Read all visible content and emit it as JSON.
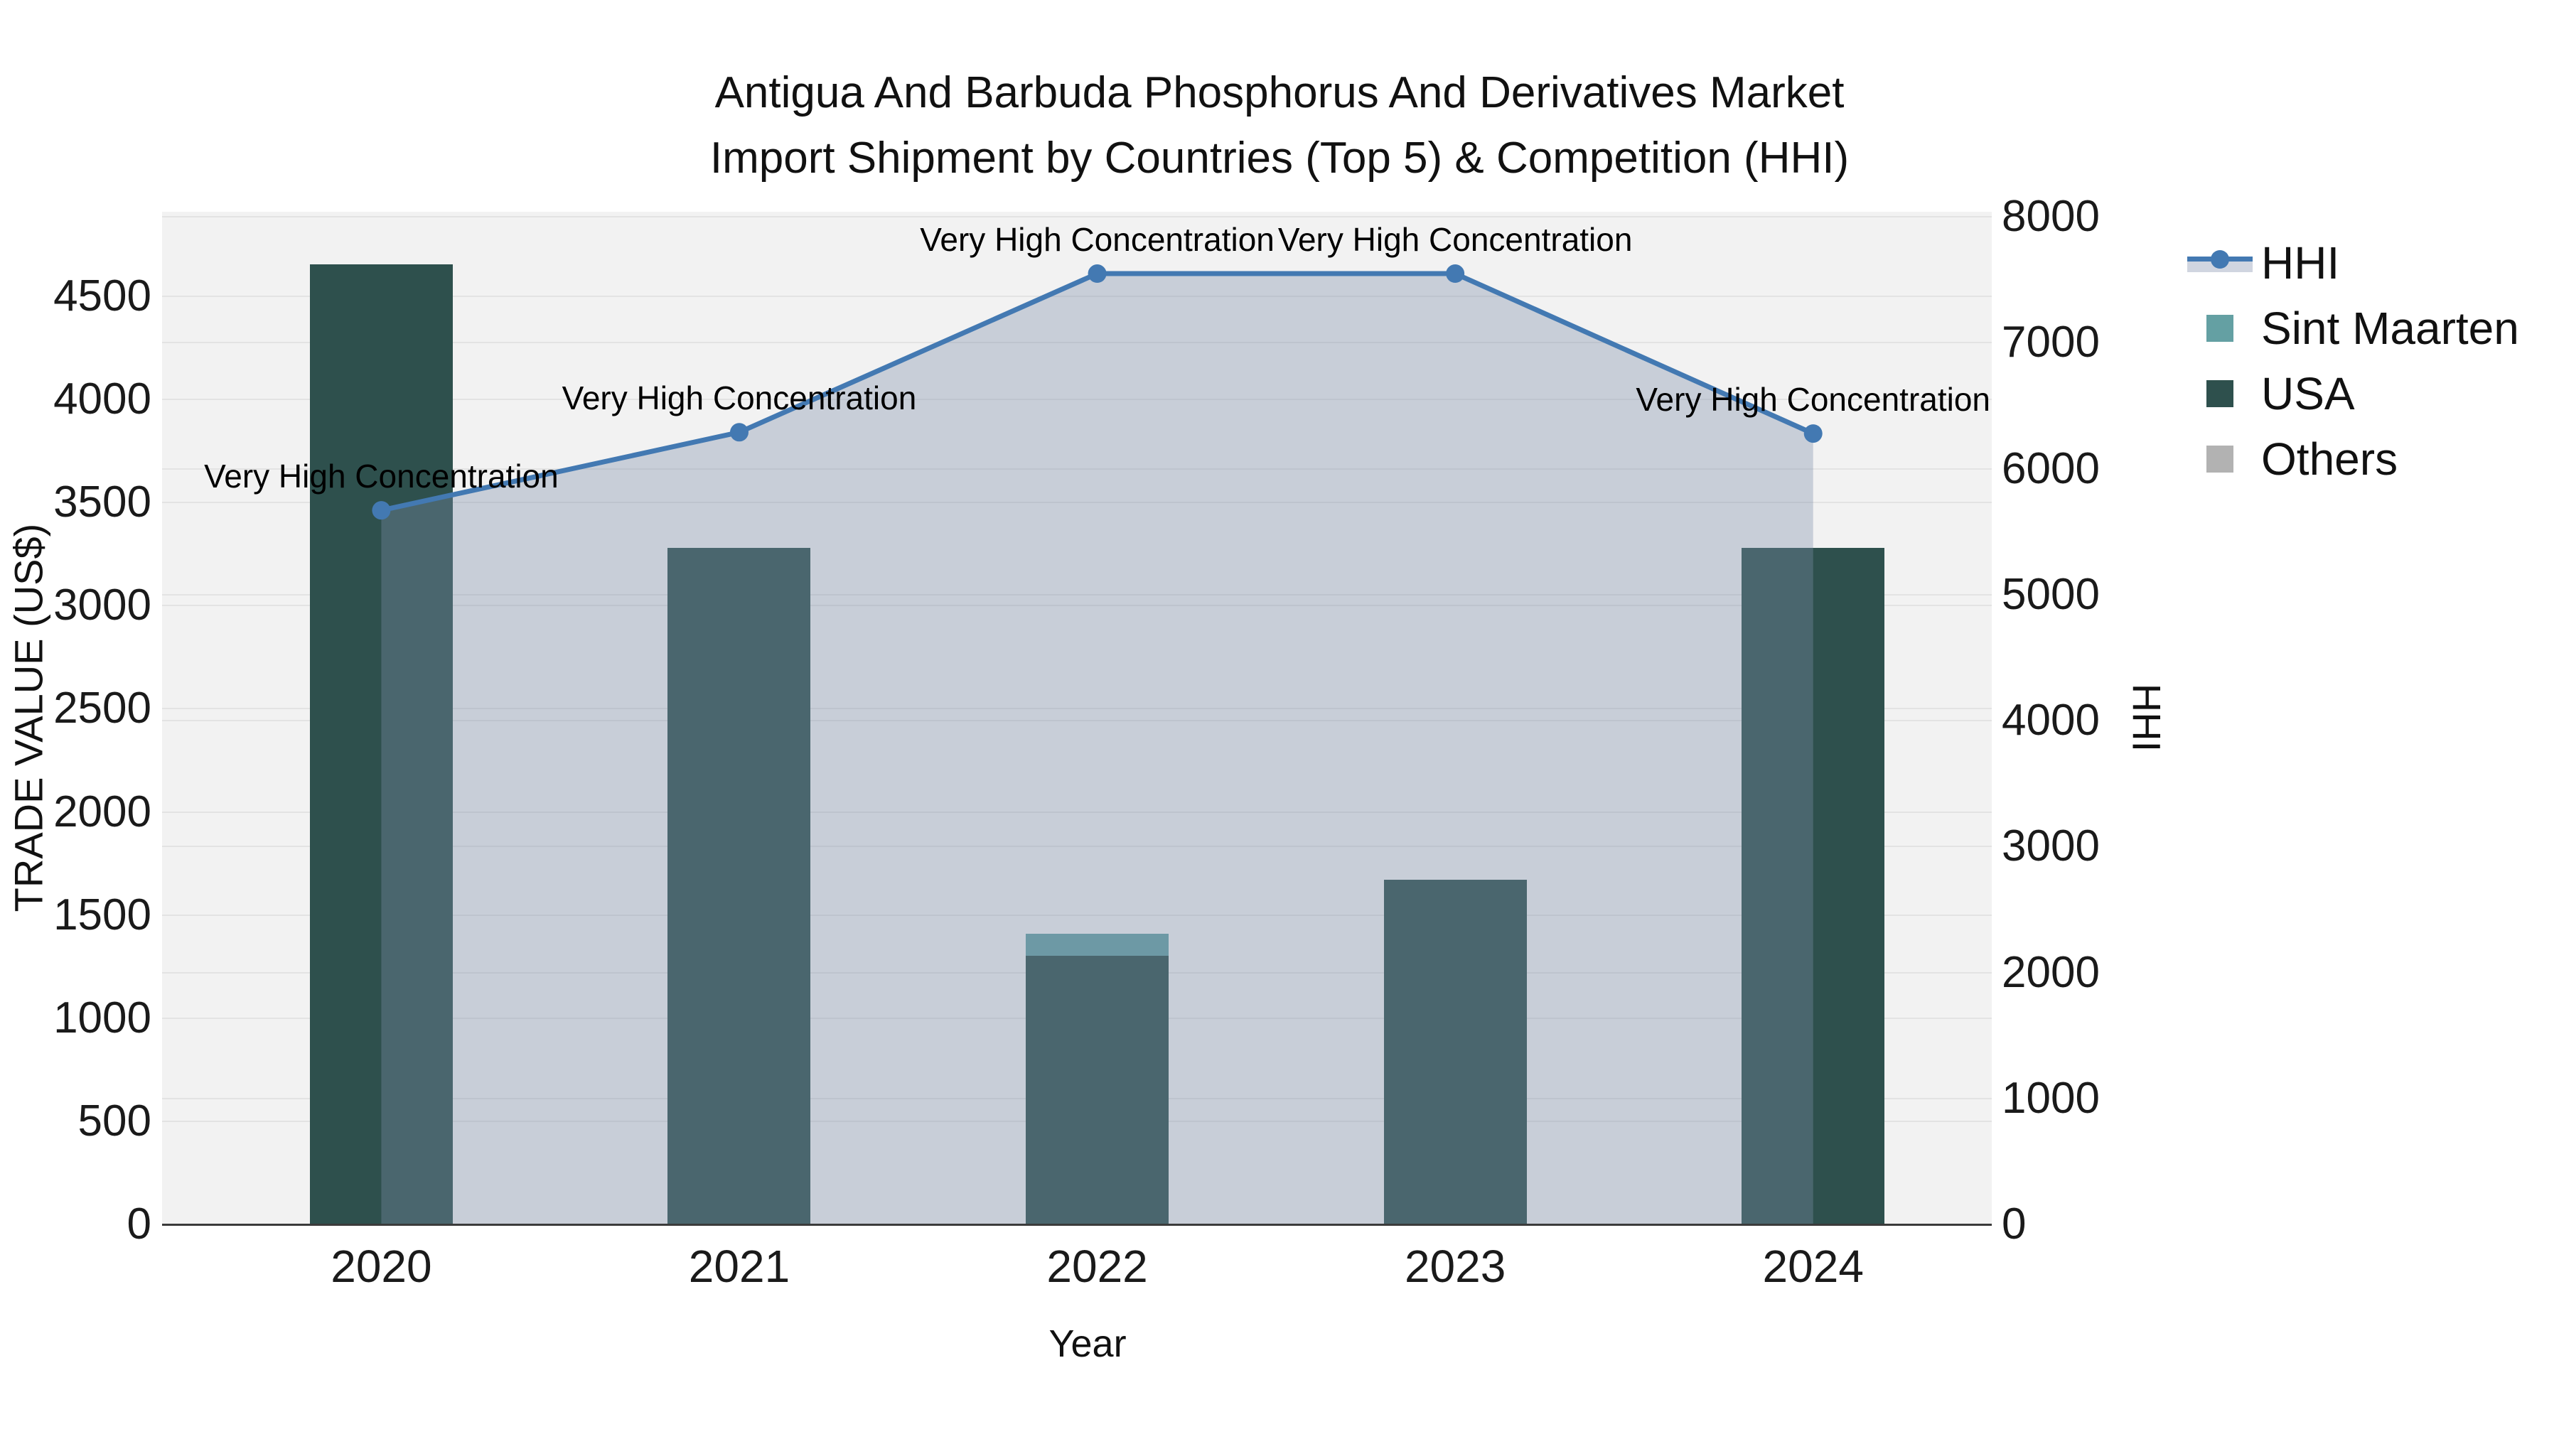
{
  "title": {
    "line1": "Antigua And Barbuda Phosphorus And Derivatives Market",
    "line2": "Import Shipment by Countries (Top 5) & Competition (HHI)"
  },
  "axes": {
    "x_label": "Year",
    "y_left_label": "TRADE VALUE (US$)",
    "y_right_label": "HHI"
  },
  "legend": {
    "items": [
      {
        "label": "HHI",
        "type": "line",
        "color": "#4379b2",
        "band_color": "#d0d5e0"
      },
      {
        "label": "Sint Maarten",
        "type": "swatch",
        "color": "#64a0a3"
      },
      {
        "label": "USA",
        "type": "swatch",
        "color": "#2e504d"
      },
      {
        "label": "Others",
        "type": "swatch",
        "color": "#b2b2b2"
      }
    ]
  },
  "chart_data": {
    "type": "combo-bar-line",
    "title": "Antigua And Barbuda Phosphorus And Derivatives Market Import Shipment by Countries (Top 5) & Competition (HHI)",
    "xlabel": "Year",
    "ylabel_left": "TRADE VALUE (US$)",
    "ylabel_right": "HHI",
    "categories": [
      "2020",
      "2021",
      "2022",
      "2023",
      "2024"
    ],
    "bar_series": [
      {
        "name": "USA",
        "color": "#2e504d",
        "values": [
          4655,
          3280,
          1302,
          1670,
          3280
        ]
      },
      {
        "name": "Sint Maarten",
        "color": "#64a0a3",
        "values": [
          0,
          0,
          108,
          0,
          0
        ]
      },
      {
        "name": "Others",
        "color": "#b2b2b2",
        "values": [
          0,
          0,
          0,
          0,
          0
        ]
      }
    ],
    "line_series": {
      "name": "HHI",
      "axis": "right",
      "color": "#4379b2",
      "fill_color": "rgba(125,140,170,0.36)",
      "values": [
        5670,
        6290,
        7550,
        7550,
        6280
      ],
      "point_annotations": [
        "Very High Concentration",
        "Very High Concentration",
        "Very High Concentration",
        "Very High Concentration",
        "Very High Concentration"
      ]
    },
    "y_left": {
      "ticks": [
        0,
        500,
        1000,
        1500,
        2000,
        2500,
        3000,
        3500,
        4000,
        4500
      ],
      "max": 4910
    },
    "y_right": {
      "ticks": [
        0,
        1000,
        2000,
        3000,
        4000,
        5000,
        6000,
        7000,
        8000
      ],
      "max": 8041
    },
    "grid": true,
    "legend_position": "top-right",
    "plot_bg": "#f2f2f2",
    "grid_color": "#e3e3e3"
  }
}
